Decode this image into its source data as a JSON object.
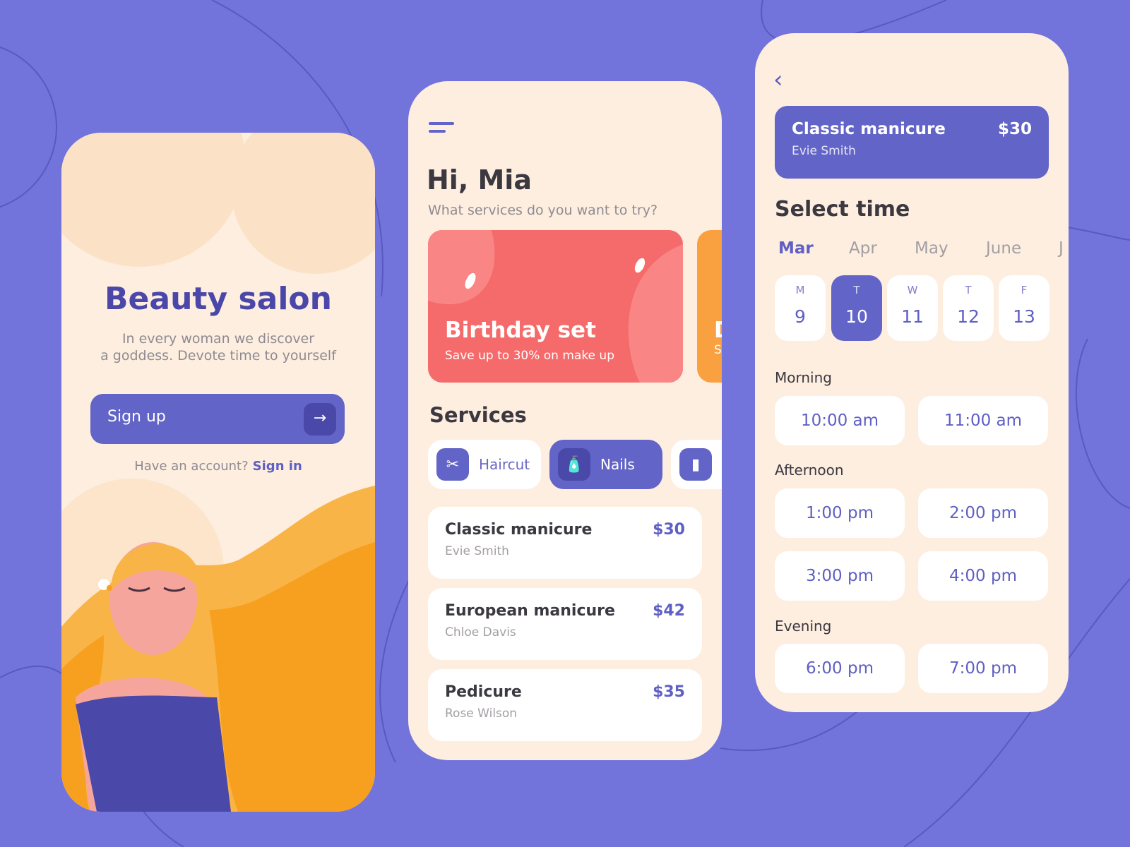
{
  "colors": {
    "background": "#7274dc",
    "accent": "#6264c7",
    "card": "#fdeee0",
    "promo": "#f56a6a",
    "hair": "#f7a020"
  },
  "welcome": {
    "title": "Beauty salon",
    "subtitle_line1": "In every woman we discover",
    "subtitle_line2": "a goddess. Devote time to yourself",
    "signup_label": "Sign up",
    "signup_icon": "arrow-right-icon",
    "have_account": "Have an account?",
    "signin_label": "Sign in"
  },
  "home": {
    "menu_icon": "hamburger-menu-icon",
    "greeting": "Hi, Mia",
    "question": "What services do you want to try?",
    "promo": {
      "title": "Birthday set",
      "subtitle": "Save up to 30% on make up",
      "next_title": "D",
      "next_subtitle": "S"
    },
    "services_title": "Services",
    "categories": [
      {
        "label": "Haircut",
        "icon": "scissors-icon",
        "selected": false
      },
      {
        "label": "Nails",
        "icon": "nail-polish-icon",
        "selected": true
      },
      {
        "label": "",
        "icon": "lipstick-icon",
        "selected": false
      }
    ],
    "services": [
      {
        "name": "Classic manicure",
        "master": "Evie Smith",
        "price": "$30"
      },
      {
        "name": "European manicure",
        "master": "Chloe Davis",
        "price": "$42"
      },
      {
        "name": "Pedicure",
        "master": "Rose Wilson",
        "price": "$35"
      }
    ]
  },
  "booking": {
    "back_icon": "chevron-left-icon",
    "service": {
      "name": "Classic manicure",
      "master": "Evie Smith",
      "price": "$30"
    },
    "title": "Select time",
    "months": [
      "Mar",
      "Apr",
      "May",
      "June",
      "J"
    ],
    "selected_month": "Mar",
    "days": [
      {
        "weekday": "M",
        "date": "9"
      },
      {
        "weekday": "T",
        "date": "10",
        "selected": true
      },
      {
        "weekday": "W",
        "date": "11"
      },
      {
        "weekday": "T",
        "date": "12"
      },
      {
        "weekday": "F",
        "date": "13"
      }
    ],
    "sections": [
      {
        "label": "Morning",
        "slots": [
          "10:00 am",
          "11:00 am"
        ]
      },
      {
        "label": "Afternoon",
        "slots": [
          "1:00 pm",
          "2:00 pm",
          "3:00 pm",
          "4:00 pm"
        ]
      },
      {
        "label": "Evening",
        "slots": [
          "6:00 pm",
          "7:00 pm"
        ]
      }
    ]
  }
}
